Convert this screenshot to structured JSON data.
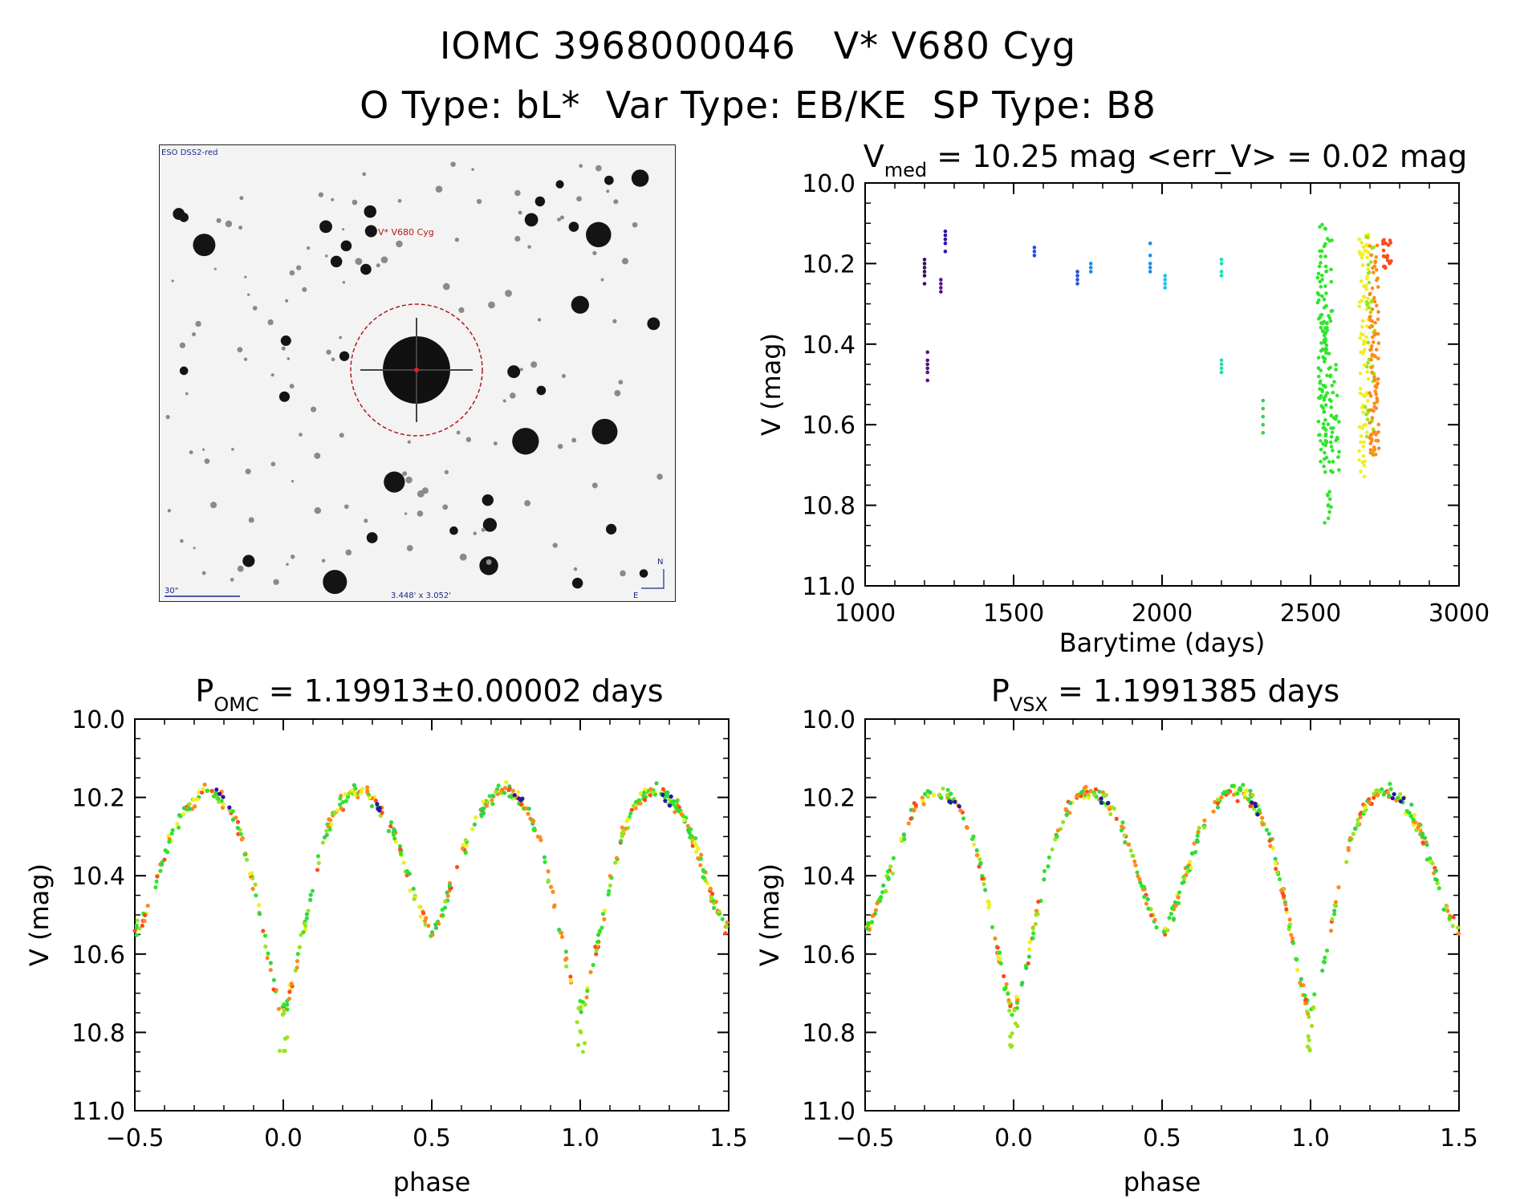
{
  "header": {
    "line1": "IOMC 3968000046   V* V680 Cyg",
    "line2": "O Type: bL*  Var Type: EB/KE  SP Type: B8"
  },
  "sky_image": {
    "source_label": "ESO DSS2-red",
    "target_label": "V* V680 Cyg",
    "scale_label": "30\"",
    "field_label": "3.448' x 3.052'",
    "north_label": "N",
    "east_label": "E"
  },
  "colors": {
    "epochs": [
      "#3d0c5c",
      "#5b0f8a",
      "#2a14a8",
      "#1f54d8",
      "#1c8de6",
      "#17c3e6",
      "#19e0b2",
      "#33d24d",
      "#2ee62a",
      "#9be41d",
      "#f0f01e",
      "#ff8a1a",
      "#ff4a1a"
    ],
    "axis": "#000000",
    "target_circle": "#b01818"
  },
  "chart_data": [
    {
      "type": "scatter",
      "id": "lightcurve",
      "title_prefix": "V",
      "title_sub": "med",
      "title_rest": " = 10.25 mag <err_V> = 0.02 mag",
      "xlabel": "Barytime (days)",
      "ylabel": "V (mag)",
      "xlim": [
        1000,
        3000
      ],
      "ylim": [
        11.0,
        10.0
      ],
      "x_ticks": [
        "1000",
        "1500",
        "2000",
        "2500",
        "3000"
      ],
      "y_ticks": [
        "10.0",
        "10.2",
        "10.4",
        "10.6",
        "10.8",
        "11.0"
      ],
      "groups": [
        {
          "x": 1200,
          "color_index": 0,
          "values": [
            10.19,
            10.2,
            10.21,
            10.22,
            10.23,
            10.25
          ]
        },
        {
          "x": 1210,
          "color_index": 1,
          "values": [
            10.42,
            10.44,
            10.45,
            10.46,
            10.47,
            10.49
          ]
        },
        {
          "x": 1255,
          "color_index": 1,
          "values": [
            10.24,
            10.25,
            10.26,
            10.27
          ]
        },
        {
          "x": 1270,
          "color_index": 2,
          "values": [
            10.12,
            10.13,
            10.14,
            10.15,
            10.17
          ]
        },
        {
          "x": 1570,
          "color_index": 3,
          "values": [
            10.16,
            10.17,
            10.18
          ]
        },
        {
          "x": 1715,
          "color_index": 3,
          "values": [
            10.22,
            10.23,
            10.24,
            10.25
          ]
        },
        {
          "x": 1760,
          "color_index": 4,
          "values": [
            10.2,
            10.21,
            10.22
          ]
        },
        {
          "x": 1960,
          "color_index": 4,
          "values": [
            10.15,
            10.18,
            10.2,
            10.21,
            10.22
          ]
        },
        {
          "x": 2010,
          "color_index": 5,
          "values": [
            10.23,
            10.24,
            10.25,
            10.26
          ]
        },
        {
          "x": 2200,
          "color_index": 6,
          "values": [
            10.19,
            10.2,
            10.22,
            10.23,
            10.44,
            10.45,
            10.46,
            10.47
          ]
        },
        {
          "x": 2340,
          "color_index": 7,
          "values": [
            10.54,
            10.56,
            10.58,
            10.6,
            10.62
          ]
        },
        {
          "x": 2540,
          "color_index": 8,
          "min": 10.1,
          "max": 10.72,
          "count": 90
        },
        {
          "x": 2560,
          "color_index": 8,
          "min": 10.12,
          "max": 10.85,
          "count": 60
        },
        {
          "x": 2580,
          "color_index": 8,
          "min": 10.45,
          "max": 10.72,
          "count": 20
        },
        {
          "x": 2680,
          "color_index": 10,
          "min": 10.12,
          "max": 10.74,
          "count": 80
        },
        {
          "x": 2700,
          "color_index": 9,
          "min": 10.12,
          "max": 10.68,
          "count": 40
        },
        {
          "x": 2715,
          "color_index": 11,
          "min": 10.15,
          "max": 10.68,
          "count": 90
        },
        {
          "x": 2760,
          "color_index": 12,
          "min": 10.14,
          "max": 10.22,
          "count": 20
        }
      ]
    },
    {
      "type": "scatter",
      "id": "phase-omc",
      "title_prefix": "P",
      "title_sub": "OMC",
      "title_rest": " = 1.19913±0.00002 days",
      "xlabel": "phase",
      "ylabel": "V (mag)",
      "xlim": [
        -0.5,
        1.5
      ],
      "ylim": [
        11.0,
        10.0
      ],
      "x_ticks": [
        "−0.5",
        "0.0",
        "0.5",
        "1.0",
        "1.5"
      ],
      "y_ticks": [
        "10.0",
        "10.2",
        "10.4",
        "10.6",
        "10.8",
        "11.0"
      ],
      "model": {
        "max_mag": 10.16,
        "primary_min_mag": 10.68,
        "secondary_min_mag": 10.48,
        "scatter": 0.03,
        "points_per_cycle": 260
      }
    },
    {
      "type": "scatter",
      "id": "phase-vsx",
      "title_prefix": "P",
      "title_sub": "VSX",
      "title_rest": " = 1.1991385 days",
      "xlabel": "phase",
      "ylabel": "V (mag)",
      "xlim": [
        -0.5,
        1.5
      ],
      "ylim": [
        11.0,
        10.0
      ],
      "x_ticks": [
        "−0.5",
        "0.0",
        "0.5",
        "1.0",
        "1.5"
      ],
      "y_ticks": [
        "10.0",
        "10.2",
        "10.4",
        "10.6",
        "10.8",
        "11.0"
      ],
      "model": {
        "max_mag": 10.16,
        "primary_min_mag": 10.68,
        "secondary_min_mag": 10.48,
        "scatter": 0.03,
        "points_per_cycle": 260
      }
    }
  ]
}
